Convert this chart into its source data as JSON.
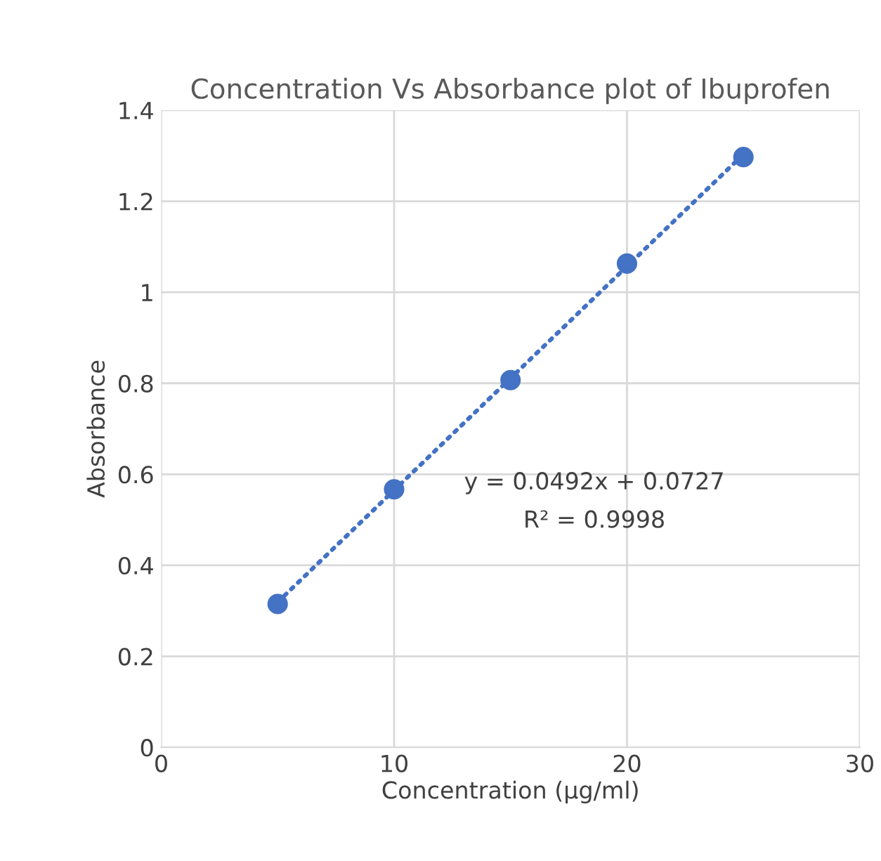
{
  "chart_data": {
    "type": "scatter",
    "title": "Concentration Vs Absorbance plot of Ibuprofen",
    "xlabel": "Concentration (µg/ml)",
    "ylabel": "Absorbance",
    "series": [
      {
        "color": "#4472c4",
        "x": [
          5,
          10,
          15,
          20,
          25
        ],
        "values": [
          0.315,
          0.567,
          0.807,
          1.063,
          1.297
        ],
        "marker": "circle"
      },
      {
        "type": "line",
        "color": "#4472c4",
        "x": [
          5,
          25
        ],
        "values": [
          0.319,
          1.303
        ],
        "line_style": "dotted"
      }
    ],
    "annotations": [
      "y = 0.0492x + 0.0727",
      "R² = 0.9998"
    ],
    "xlim": [
      0,
      30
    ],
    "xticks": [
      0,
      10,
      20,
      30
    ],
    "ylim": [
      0,
      1.4
    ],
    "yticks": [
      0,
      0.2,
      0.4,
      0.6,
      0.8,
      1,
      1.2,
      1.4
    ],
    "grid": true,
    "legend": false
  }
}
